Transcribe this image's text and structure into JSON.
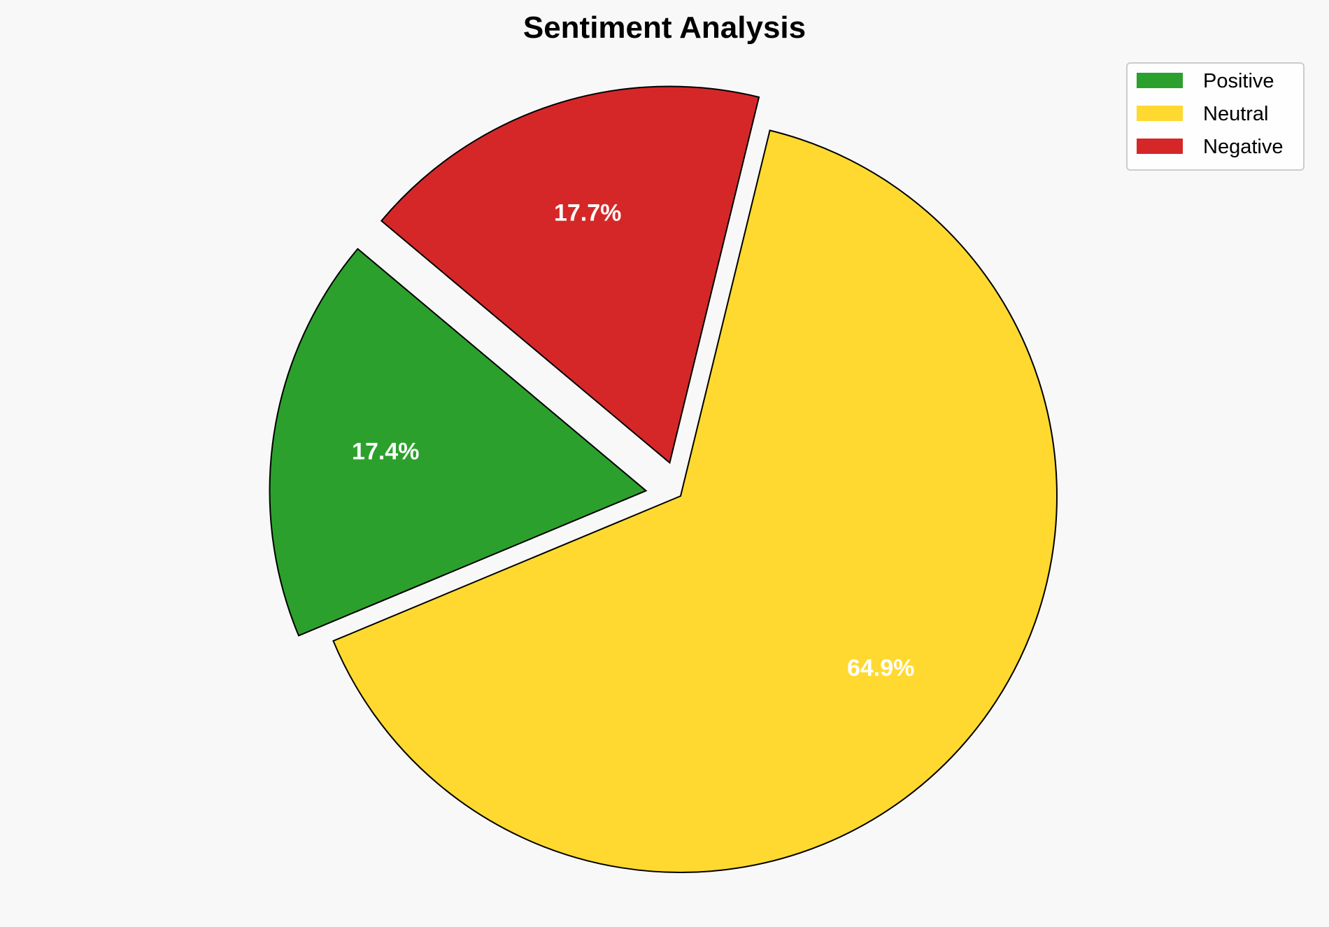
{
  "chart_data": {
    "type": "pie",
    "title": "Sentiment Analysis",
    "categories": [
      "Positive",
      "Neutral",
      "Negative"
    ],
    "values": [
      17.4,
      64.9,
      17.7
    ],
    "labels": [
      "17.4%",
      "64.9%",
      "17.7%"
    ],
    "colors": [
      "#2ca02c",
      "#ffd92f",
      "#d62728"
    ],
    "explode": [
      0.1,
      0,
      0.1
    ],
    "start_angle": 140,
    "direction": "counterclockwise",
    "legend": {
      "placement": "top-right",
      "entries": [
        "Positive",
        "Neutral",
        "Negative"
      ]
    },
    "background": "#f8f8f8"
  }
}
